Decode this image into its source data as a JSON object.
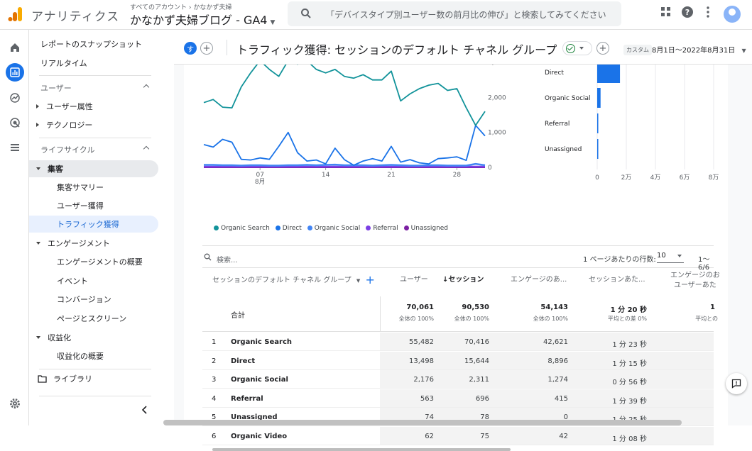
{
  "app": {
    "name": "アナリティクス"
  },
  "account": {
    "crumb": "すべてのアカウント › かなかず夫婦",
    "property": "かなかず夫婦ブログ - GA4"
  },
  "search": {
    "placeholder": "「デバイスタイプ別ユーザー数の前月比の伸び」と検索してみてください"
  },
  "top_icons": [
    "apps-icon",
    "help-icon",
    "more-vert-icon",
    "account-avatar"
  ],
  "rail": [
    "home-icon",
    "reports-icon",
    "explore-icon",
    "advertising-icon",
    "configure-icon",
    "settings-icon"
  ],
  "sidebar": {
    "snapshot": "レポートのスナップショット",
    "realtime": "リアルタイム",
    "user_section": "ユーザー",
    "user_attr": "ユーザー属性",
    "tech": "テクノロジー",
    "lifecycle": "ライフサイクル",
    "acquisition": "集客",
    "acq_overview": "集客サマリー",
    "user_acq": "ユーザー獲得",
    "traffic_acq": "トラフィック獲得",
    "engagement": "エンゲージメント",
    "eng_overview": "エンゲージメントの概要",
    "events": "イベント",
    "conversions": "コンバージョン",
    "pages": "ページとスクリーン",
    "monetization": "収益化",
    "mon_overview": "収益化の概要",
    "library": "ライブラリ"
  },
  "header": {
    "badge": "す",
    "title": "トラフィック獲得: セッションのデフォルト チャネル グループ",
    "custom": "カスタム",
    "date_range": "8月1日〜2022年8月31日"
  },
  "colors": {
    "accent": "#1a73e8",
    "search": "#12939A",
    "direct": "#1a73e8",
    "social": "#4285f4",
    "referral": "#7b3fe4",
    "unassigned": "#7b1fa2"
  },
  "chart_data": [
    {
      "type": "line",
      "x_tick_labels": [
        "07",
        "14",
        "21",
        "28"
      ],
      "x_month_label": "8月",
      "y_tick_labels": [
        "3,000",
        "2,000",
        "1,000",
        "0"
      ],
      "ylim": [
        0,
        3000
      ],
      "legend": [
        "Organic Search",
        "Direct",
        "Organic Social",
        "Referral",
        "Unassigned"
      ],
      "series": [
        {
          "name": "Organic Search",
          "values": [
            1850,
            1940,
            1720,
            1700,
            2300,
            2700,
            3050,
            2800,
            2600,
            3050,
            2950,
            3050,
            2800,
            2700,
            2800,
            2600,
            2550,
            2650,
            2500,
            2500,
            2750,
            1900,
            2100,
            2250,
            2350,
            2400,
            2200,
            2250,
            1700,
            1200,
            1600
          ]
        },
        {
          "name": "Direct",
          "values": [
            650,
            580,
            800,
            720,
            230,
            210,
            270,
            230,
            600,
            1000,
            420,
            180,
            210,
            100,
            550,
            220,
            60,
            180,
            250,
            180,
            600,
            150,
            220,
            130,
            100,
            250,
            270,
            300,
            200,
            1200,
            900
          ]
        },
        {
          "name": "Organic Social",
          "values": [
            70,
            70,
            60,
            60,
            50,
            60,
            60,
            50,
            50,
            60,
            60,
            70,
            60,
            70,
            80,
            60,
            60,
            60,
            50,
            60,
            70,
            60,
            50,
            50,
            60,
            60,
            50,
            50,
            50,
            100,
            60
          ]
        },
        {
          "name": "Referral",
          "values": [
            20,
            20,
            20,
            20,
            20,
            20,
            20,
            20,
            20,
            20,
            20,
            20,
            20,
            20,
            20,
            20,
            20,
            20,
            20,
            20,
            20,
            20,
            20,
            20,
            20,
            20,
            20,
            20,
            20,
            20,
            20
          ]
        },
        {
          "name": "Unassigned",
          "values": [
            5,
            5,
            5,
            5,
            5,
            5,
            5,
            5,
            5,
            5,
            5,
            5,
            5,
            5,
            5,
            5,
            5,
            5,
            5,
            5,
            5,
            5,
            5,
            5,
            5,
            5,
            5,
            5,
            5,
            5,
            5
          ]
        }
      ]
    },
    {
      "type": "bar",
      "orientation": "horizontal",
      "categories": [
        "Direct",
        "Organic Social",
        "Referral",
        "Unassigned"
      ],
      "values": [
        15644,
        2311,
        696,
        78
      ],
      "x_tick_labels": [
        "0",
        "2万",
        "4万",
        "6万",
        "8万"
      ],
      "xlim": [
        0,
        80000
      ]
    }
  ],
  "table": {
    "search_placeholder": "検索...",
    "rows_per_page_label": "1 ページあたりの行数:",
    "rows_per_page": "10",
    "pager": "1〜6/6",
    "dim_header": "セッションのデフォルト チャネル グループ",
    "col_users": "ユーザー",
    "col_sessions": "↓セッション",
    "col_engaged": "エンゲージのあ...",
    "col_avg": "セッションあた...",
    "col_eng_rate_1": "エンゲージのお",
    "col_eng_rate_2": "ユーザーあた",
    "total_label": "合計",
    "totals": {
      "users": "70,061",
      "users_sub": "全体の 100%",
      "sessions": "90,530",
      "sessions_sub": "全体の 100%",
      "engaged": "54,143",
      "engaged_sub": "全体の 100%",
      "avg": "1 分 20 秒",
      "avg_sub": "平均との差 0%",
      "rate": "1",
      "rate_sub": "平均との"
    },
    "rows": [
      {
        "idx": "1",
        "label": "Organic Search",
        "users": "55,482",
        "sessions": "70,416",
        "engaged": "42,621",
        "avg": "1 分 23 秒"
      },
      {
        "idx": "2",
        "label": "Direct",
        "users": "13,498",
        "sessions": "15,644",
        "engaged": "8,896",
        "avg": "1 分 15 秒"
      },
      {
        "idx": "3",
        "label": "Organic Social",
        "users": "2,176",
        "sessions": "2,311",
        "engaged": "1,274",
        "avg": "0 分 56 秒"
      },
      {
        "idx": "4",
        "label": "Referral",
        "users": "563",
        "sessions": "696",
        "engaged": "415",
        "avg": "1 分 39 秒"
      },
      {
        "idx": "5",
        "label": "Unassigned",
        "users": "74",
        "sessions": "78",
        "engaged": "0",
        "avg": "1 分 25 秒"
      },
      {
        "idx": "6",
        "label": "Organic Video",
        "users": "62",
        "sessions": "75",
        "engaged": "42",
        "avg": "1 分 08 秒"
      }
    ]
  }
}
